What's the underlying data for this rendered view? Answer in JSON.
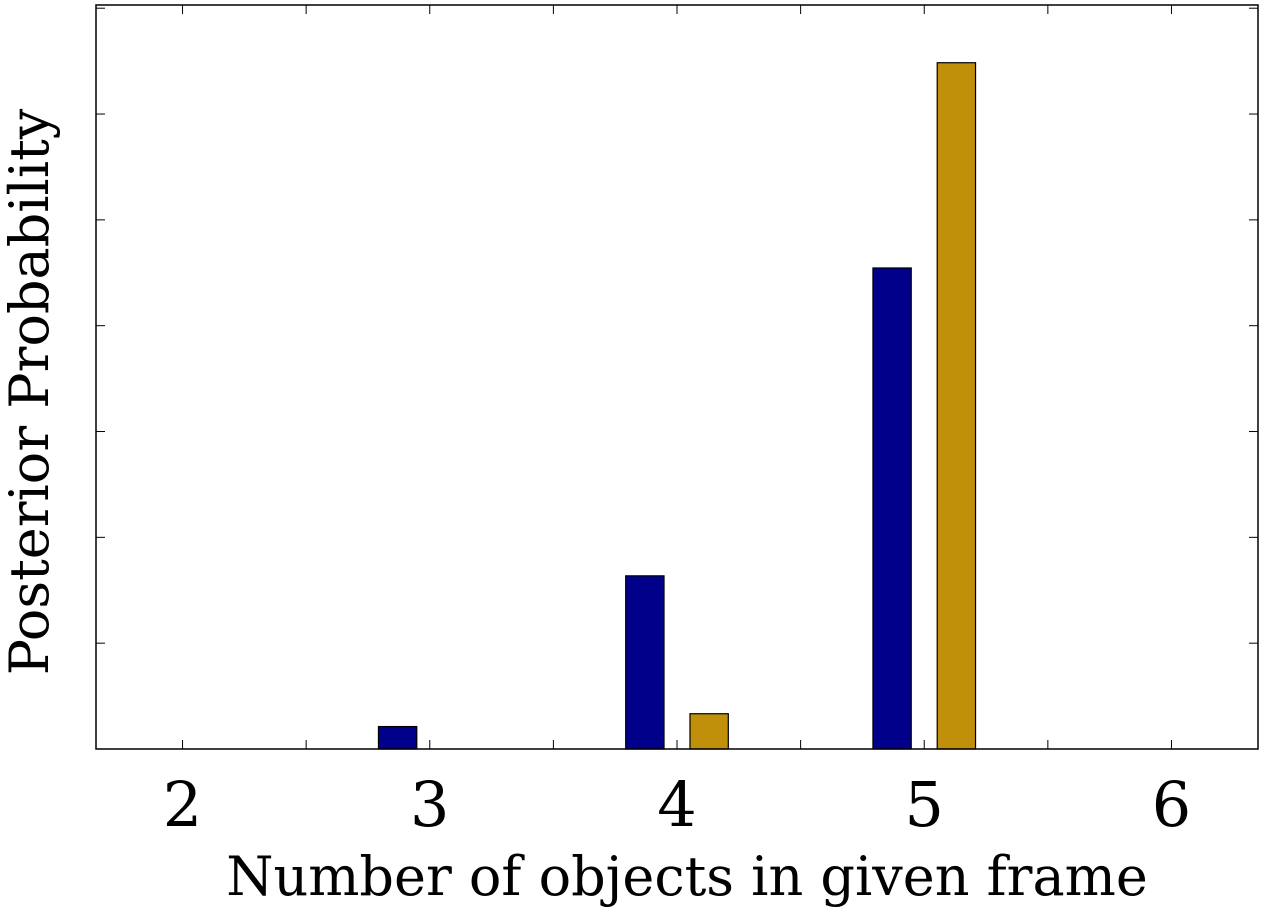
{
  "chart_data": {
    "type": "bar",
    "title": "",
    "xlabel": "Number of objects in given frame",
    "ylabel": "Posterior Probability",
    "categories": [
      "2",
      "3",
      "4",
      "5",
      "6"
    ],
    "series": [
      {
        "values": [
          0.0,
          0.035,
          0.27,
          0.75,
          0.0
        ],
        "color": "#00008b"
      },
      {
        "values": [
          0.0,
          0.0,
          0.055,
          1.07,
          0.0
        ],
        "color": "#c0900a"
      }
    ],
    "xlim": [
      1.65,
      6.35
    ],
    "ylim": [
      0,
      1.16
    ],
    "yticks": [
      0,
      0.165,
      0.33,
      0.495,
      0.66,
      0.825,
      0.99,
      1.155
    ],
    "grid": false,
    "legend": "none"
  }
}
